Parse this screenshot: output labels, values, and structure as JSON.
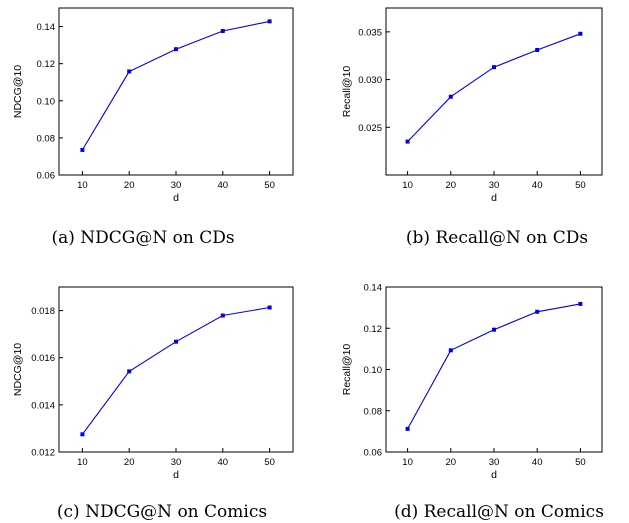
{
  "chart_data": [
    {
      "type": "line",
      "caption": "(a) NDCG@N on CDs",
      "xlabel": "d",
      "ylabel": "NDCG@10",
      "x": [
        10,
        20,
        30,
        40,
        50
      ],
      "xticks": [
        "10",
        "20",
        "30",
        "40",
        "50"
      ],
      "xlim": [
        5,
        55
      ],
      "ylim": [
        0.06,
        0.15
      ],
      "yticks": [
        "0.06",
        "0.08",
        "0.10",
        "0.12",
        "0.14"
      ],
      "ytick_values": [
        0.06,
        0.08,
        0.1,
        0.12,
        0.14
      ],
      "series": [
        {
          "values": [
            0.0735,
            0.1158,
            0.1278,
            0.1376,
            0.1428
          ]
        }
      ],
      "color": "#0000ee",
      "grid": false
    },
    {
      "type": "line",
      "caption": "(b) Recall@N on CDs",
      "xlabel": "d",
      "ylabel": "Recall@10",
      "x": [
        10,
        20,
        30,
        40,
        50
      ],
      "xticks": [
        "10",
        "20",
        "30",
        "40",
        "50"
      ],
      "xlim": [
        5,
        55
      ],
      "ylim": [
        0.02,
        0.0375
      ],
      "yticks": [
        "0.025",
        "0.030",
        "0.035"
      ],
      "ytick_values": [
        0.025,
        0.03,
        0.035
      ],
      "series": [
        {
          "values": [
            0.0235,
            0.0282,
            0.0313,
            0.0331,
            0.0348
          ]
        }
      ],
      "color": "#0000ee",
      "grid": false
    },
    {
      "type": "line",
      "caption": "(c) NDCG@N on Comics",
      "xlabel": "d",
      "ylabel": "NDCG@10",
      "x": [
        10,
        20,
        30,
        40,
        50
      ],
      "xticks": [
        "10",
        "20",
        "30",
        "40",
        "50"
      ],
      "xlim": [
        5,
        55
      ],
      "ylim": [
        0.012,
        0.019
      ],
      "yticks": [
        "0.012",
        "0.014",
        "0.016",
        "0.018"
      ],
      "ytick_values": [
        0.012,
        0.014,
        0.016,
        0.018
      ],
      "series": [
        {
          "values": [
            0.01275,
            0.01542,
            0.01668,
            0.01779,
            0.01813
          ]
        }
      ],
      "color": "#0000ee",
      "grid": false
    },
    {
      "type": "line",
      "caption": "(d) Recall@N on Comics",
      "xlabel": "d",
      "ylabel": "Recall@10",
      "x": [
        10,
        20,
        30,
        40,
        50
      ],
      "xticks": [
        "10",
        "20",
        "30",
        "40",
        "50"
      ],
      "xlim": [
        5,
        55
      ],
      "ylim": [
        0.06,
        0.14
      ],
      "yticks": [
        "0.06",
        "0.08",
        "0.10",
        "0.12",
        "0.14"
      ],
      "ytick_values": [
        0.06,
        0.08,
        0.1,
        0.12,
        0.14
      ],
      "series": [
        {
          "values": [
            0.0712,
            0.1093,
            0.1193,
            0.128,
            0.1318
          ]
        }
      ],
      "color": "#0000ee",
      "grid": false
    }
  ]
}
